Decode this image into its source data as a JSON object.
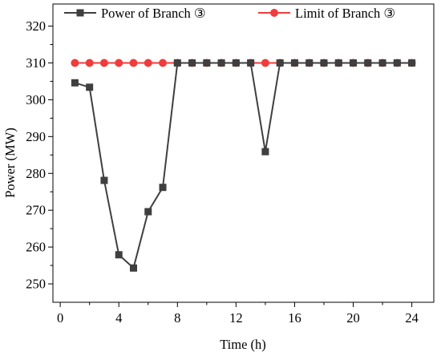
{
  "chart_data": {
    "type": "line",
    "title": "",
    "xlabel": "Time (h)",
    "ylabel": "Power (MW)",
    "xlim": [
      -0.5,
      25.5
    ],
    "ylim": [
      245,
      326
    ],
    "x_ticks": [
      0,
      4,
      8,
      12,
      16,
      20,
      24
    ],
    "y_ticks": [
      250,
      260,
      270,
      280,
      290,
      300,
      310,
      320
    ],
    "grid": false,
    "legend_placement": "top",
    "series": [
      {
        "name": "Power of Branch ③",
        "color": "#3f3f3f",
        "marker": "square",
        "x": [
          1,
          2,
          3,
          4,
          5,
          6,
          7,
          8,
          9,
          10,
          11,
          12,
          13,
          14,
          15,
          16,
          17,
          18,
          19,
          20,
          21,
          22,
          23,
          24
        ],
        "y": [
          304.6,
          303.4,
          278.1,
          257.9,
          254.3,
          269.6,
          276.2,
          310,
          310,
          310,
          310,
          310,
          310,
          285.9,
          310,
          310,
          310,
          310,
          310,
          310,
          310,
          310,
          310,
          310
        ]
      },
      {
        "name": "Limit of Branch ③",
        "color": "#f03c3c",
        "marker": "circle",
        "x": [
          1,
          2,
          3,
          4,
          5,
          6,
          7,
          8,
          9,
          10,
          11,
          12,
          13,
          14,
          15,
          16,
          17,
          18,
          19,
          20,
          21,
          22,
          23,
          24
        ],
        "y": [
          310,
          310,
          310,
          310,
          310,
          310,
          310,
          310,
          310,
          310,
          310,
          310,
          310,
          310,
          310,
          310,
          310,
          310,
          310,
          310,
          310,
          310,
          310,
          310
        ]
      }
    ]
  }
}
